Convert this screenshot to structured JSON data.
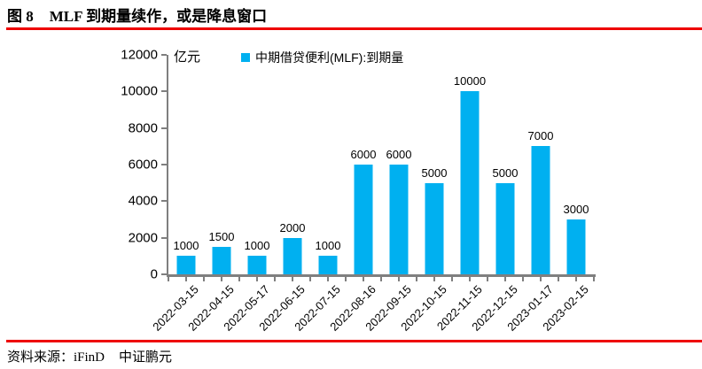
{
  "header": {
    "figure_label": "图 8",
    "title": "MLF 到期量续作，或是降息窗口"
  },
  "footer": {
    "source": "资料来源：iFinD",
    "brand": "中证鹏元"
  },
  "colors": {
    "accent_red": "#EE0000",
    "bar": "#00B0F0",
    "axis": "#7F7F7F"
  },
  "chart_data": {
    "type": "bar",
    "title": "",
    "xlabel": "",
    "ylabel": "亿元",
    "unit_label": "亿元",
    "legend": {
      "label": "中期借贷便利(MLF):到期量",
      "position": "top"
    },
    "categories": [
      "2022-03-15",
      "2022-04-15",
      "2022-05-17",
      "2022-06-15",
      "2022-07-15",
      "2022-08-16",
      "2022-09-15",
      "2022-10-15",
      "2022-11-15",
      "2022-12-15",
      "2023-01-17",
      "2023-02-15"
    ],
    "values": [
      1000,
      1500,
      1000,
      2000,
      1000,
      6000,
      6000,
      5000,
      10000,
      5000,
      7000,
      3000
    ],
    "ylim": [
      0,
      12000
    ],
    "yticks": [
      0,
      2000,
      4000,
      6000,
      8000,
      10000,
      12000
    ],
    "grid": false,
    "data_labels": true
  }
}
